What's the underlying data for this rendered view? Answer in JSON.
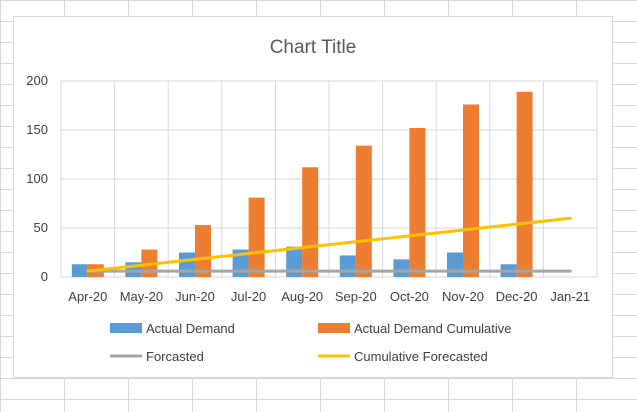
{
  "chart_data": {
    "type": "bar",
    "title": "Chart Title",
    "categories": [
      "Apr-20",
      "May-20",
      "Jun-20",
      "Jul-20",
      "Aug-20",
      "Sep-20",
      "Oct-20",
      "Nov-20",
      "Dec-20",
      "Jan-21"
    ],
    "ylim": [
      0,
      200
    ],
    "yticks": [
      "0",
      "50",
      "100",
      "150",
      "200"
    ],
    "grid": true,
    "legend_position": "bottom",
    "series": [
      {
        "name": "Actual Demand",
        "kind": "bar",
        "color": "#5b9bd5",
        "values": [
          13,
          15,
          25,
          28,
          31,
          22,
          18,
          25,
          13,
          null
        ]
      },
      {
        "name": "Actual Demand  Cumulative",
        "kind": "bar",
        "color": "#ed7d31",
        "values": [
          13,
          28,
          53,
          81,
          112,
          134,
          152,
          176,
          189,
          null
        ]
      },
      {
        "name": "Forcasted",
        "kind": "line",
        "color": "#a5a5a5",
        "values": [
          6,
          6,
          6,
          6,
          6,
          6,
          6,
          6,
          6,
          6
        ]
      },
      {
        "name": "Cumulative Forecasted",
        "kind": "line",
        "color": "#ffc000",
        "values": [
          6,
          12,
          18,
          24,
          30,
          36,
          42,
          48,
          54,
          60
        ]
      }
    ]
  }
}
